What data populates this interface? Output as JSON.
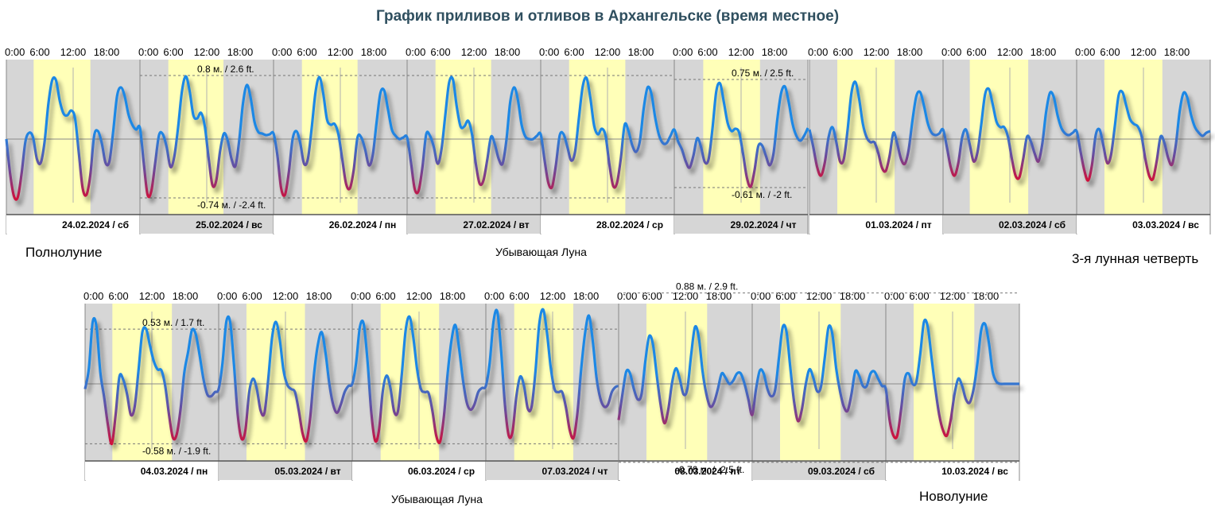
{
  "title": "График приливов и отливов в Архангельске (время местное)",
  "colors": {
    "high": "#1e88e5",
    "low": "#d0103a",
    "day": "#ffffb8",
    "night": "#d6d6d6",
    "axis": "#888888"
  },
  "chart_data": {
    "type": "line",
    "title": "График приливов и отливов в Архангельске (время местное)",
    "x_tick_labels": [
      "0:00",
      "6:00",
      "12:00",
      "18:00"
    ],
    "rows": [
      {
        "days": [
          {
            "label": "24.02.2024 / сб",
            "sunrise": 4.9,
            "sunset": 15.1,
            "y": [
              0.0,
              -0.44,
              -0.72,
              -0.73,
              -0.43,
              -0.03,
              0.08,
              0.02,
              -0.25,
              -0.3,
              -0.04,
              0.44,
              0.74,
              0.74,
              0.48,
              0.32,
              0.3,
              0.36,
              0.26,
              -0.18,
              -0.62,
              -0.7,
              -0.45,
              0.04,
              0.1,
              -0.05,
              -0.3,
              -0.28,
              0.1,
              0.54,
              0.65,
              0.54,
              0.31,
              0.18,
              0.12,
              0.14
            ]
          },
          {
            "label": "25.02.2024 / вс",
            "sunrise": 5.1,
            "sunset": 15.0,
            "y": [
              0.15,
              -0.3,
              -0.7,
              -0.65,
              -0.3,
              0.05,
              0.06,
              -0.1,
              -0.35,
              -0.22,
              0.15,
              0.6,
              0.79,
              0.61,
              0.3,
              0.26,
              0.33,
              0.16,
              -0.24,
              -0.58,
              -0.52,
              -0.15,
              0.07,
              -0.02,
              -0.25,
              -0.34,
              -0.02,
              0.45,
              0.68,
              0.52,
              0.22,
              0.09,
              0.07,
              0.05,
              0.06,
              0.07
            ]
          },
          {
            "label": "26.02.2024 / пн",
            "sunrise": 5.1,
            "sunset": 15.1,
            "y": [
              0.08,
              -0.2,
              -0.62,
              -0.7,
              -0.42,
              0.0,
              0.1,
              -0.05,
              -0.31,
              -0.25,
              0.14,
              0.59,
              0.78,
              0.58,
              0.25,
              0.18,
              0.19,
              0.06,
              -0.25,
              -0.56,
              -0.62,
              -0.39,
              0.02,
              0.02,
              -0.13,
              -0.33,
              -0.2,
              0.21,
              0.58,
              0.61,
              0.37,
              0.12,
              0.04,
              0.0,
              0.02,
              0.02
            ]
          },
          {
            "label": "27.02.2024 / вт",
            "sunrise": 5.1,
            "sunset": 15.1,
            "y": [
              0.04,
              -0.29,
              -0.63,
              -0.65,
              -0.36,
              0.06,
              0.04,
              -0.1,
              -0.31,
              -0.13,
              0.3,
              0.71,
              0.75,
              0.41,
              0.16,
              0.16,
              0.23,
              0.06,
              -0.31,
              -0.56,
              -0.52,
              -0.26,
              0.03,
              -0.07,
              -0.25,
              -0.31,
              -0.02,
              0.46,
              0.65,
              0.5,
              0.18,
              0.03,
              0.0,
              0.0,
              0.04,
              0.06
            ]
          },
          {
            "label": "28.02.2024 / ср",
            "sunrise": 5.1,
            "sunset": 15.2,
            "y": [
              -0.05,
              -0.26,
              -0.55,
              -0.6,
              -0.32,
              0.05,
              0.06,
              -0.1,
              -0.27,
              -0.16,
              0.26,
              0.66,
              0.77,
              0.52,
              0.17,
              0.06,
              0.13,
              0.04,
              -0.32,
              -0.59,
              -0.55,
              -0.24,
              0.18,
              0.1,
              -0.08,
              -0.16,
              -0.02,
              0.39,
              0.65,
              0.57,
              0.27,
              0.05,
              -0.05,
              -0.05,
              0.04,
              0.12
            ]
          },
          {
            "label": "29.02.2024 / чт",
            "sunrise": 5.2,
            "sunset": 15.4,
            "y": [
              -0.05,
              -0.03,
              -0.13,
              -0.28,
              -0.36,
              -0.21,
              0.01,
              -0.1,
              -0.29,
              -0.25,
              0.13,
              0.6,
              0.7,
              0.46,
              0.2,
              0.1,
              0.13,
              0.08,
              -0.18,
              -0.48,
              -0.6,
              -0.4,
              -0.09,
              -0.08,
              -0.21,
              -0.33,
              -0.18,
              0.25,
              0.58,
              0.66,
              0.46,
              0.19,
              0.04,
              -0.02,
              0.04,
              0.14
            ]
          }
        ]
      },
      {
        "days": [
          {
            "label": "01.03.2024 / пт",
            "sunrise": 5.0,
            "sunset": 15.3,
            "y": [
              0.12,
              -0.1,
              -0.35,
              -0.46,
              -0.3,
              0.02,
              0.15,
              -0.03,
              -0.28,
              -0.25,
              0.12,
              0.58,
              0.72,
              0.51,
              0.19,
              0.02,
              -0.04,
              -0.04,
              -0.17,
              -0.36,
              -0.4,
              -0.21,
              0.08,
              -0.06,
              -0.25,
              -0.31,
              -0.13,
              0.24,
              0.54,
              0.59,
              0.42,
              0.2,
              0.08,
              0.05,
              0.07,
              0.12
            ]
          },
          {
            "label": "02.03.2024 / сб",
            "sunrise": 4.8,
            "sunset": 15.3,
            "y": [
              0.12,
              -0.1,
              -0.35,
              -0.46,
              -0.3,
              0.02,
              0.12,
              -0.07,
              -0.28,
              -0.17,
              0.18,
              0.56,
              0.63,
              0.44,
              0.22,
              0.15,
              0.15,
              0.03,
              -0.24,
              -0.46,
              -0.48,
              -0.25,
              0.03,
              -0.03,
              -0.18,
              -0.28,
              -0.06,
              0.34,
              0.58,
              0.53,
              0.3,
              0.14,
              0.07,
              0.05,
              0.08,
              0.1
            ]
          },
          {
            "label": "03.03.2024 / вс",
            "sunrise": 5.0,
            "sunset": 15.4,
            "y": [
              0.1,
              -0.15,
              -0.39,
              -0.52,
              -0.33,
              0.05,
              0.12,
              -0.08,
              -0.3,
              -0.2,
              0.16,
              0.55,
              0.59,
              0.42,
              0.25,
              0.19,
              0.16,
              0.04,
              -0.25,
              -0.46,
              -0.5,
              -0.27,
              0.03,
              -0.05,
              -0.24,
              -0.32,
              -0.07,
              0.35,
              0.58,
              0.52,
              0.3,
              0.15,
              0.08,
              0.04,
              0.08,
              0.1
            ]
          }
        ]
      },
      {
        "days": [
          {
            "label": "04.03.2024 / пн",
            "sunrise": 4.9,
            "sunset": 15.6,
            "y": [
              -0.05,
              0.15,
              0.6,
              0.55,
              0.11,
              -0.13,
              -0.4,
              -0.58,
              -0.3,
              0.07,
              0.04,
              -0.1,
              -0.3,
              -0.22,
              0.13,
              0.5,
              0.53,
              0.37,
              0.22,
              0.14,
              0.13,
              -0.02,
              -0.3,
              -0.52,
              -0.49,
              -0.25,
              0.11,
              0.31,
              0.52,
              0.48,
              0.28,
              0.05,
              -0.1,
              -0.12,
              -0.08,
              -0.05
            ]
          },
          {
            "label": "05.03.2024 / вт",
            "sunrise": 5.0,
            "sunset": 15.5,
            "y": [
              -0.07,
              0.2,
              0.6,
              0.6,
              0.19,
              -0.3,
              -0.53,
              -0.45,
              -0.08,
              0.05,
              -0.05,
              -0.26,
              -0.28,
              0.05,
              0.45,
              0.6,
              0.43,
              0.13,
              -0.01,
              -0.05,
              -0.08,
              -0.26,
              -0.48,
              -0.55,
              -0.32,
              0.1,
              0.38,
              0.5,
              0.3,
              0.0,
              -0.2,
              -0.28,
              -0.2,
              -0.08,
              -0.02,
              0.0
            ]
          },
          {
            "label": "06.03.2024 / ср",
            "sunrise": 5.1,
            "sunset": 15.6,
            "y": [
              0.0,
              0.2,
              0.55,
              0.58,
              0.22,
              -0.28,
              -0.55,
              -0.45,
              -0.07,
              0.08,
              -0.04,
              -0.27,
              -0.26,
              0.1,
              0.52,
              0.65,
              0.45,
              0.14,
              -0.05,
              -0.08,
              -0.09,
              -0.26,
              -0.5,
              -0.56,
              -0.32,
              0.1,
              0.42,
              0.57,
              0.34,
              0.04,
              -0.18,
              -0.25,
              -0.2,
              -0.08,
              -0.04,
              -0.02
            ]
          },
          {
            "label": "07.03.2024 / чт",
            "sunrise": 5.1,
            "sunset": 15.7,
            "y": [
              0.0,
              0.2,
              0.6,
              0.7,
              0.32,
              -0.2,
              -0.5,
              -0.46,
              -0.12,
              0.07,
              -0.02,
              -0.24,
              -0.22,
              0.12,
              0.58,
              0.72,
              0.5,
              0.16,
              -0.05,
              -0.08,
              -0.08,
              -0.23,
              -0.45,
              -0.52,
              -0.28,
              0.15,
              0.49,
              0.66,
              0.42,
              0.06,
              -0.14,
              -0.22,
              -0.2,
              -0.08,
              -0.03,
              -0.02
            ]
          }
        ]
      },
      {
        "days": [
          {
            "label": "08.03.2024 / пт",
            "sunrise": 5.0,
            "sunset": 15.9,
            "y": [
              -0.35,
              -0.1,
              0.12,
              0.1,
              -0.05,
              -0.15,
              -0.1,
              0.22,
              0.46,
              0.38,
              0.08,
              -0.2,
              -0.38,
              -0.25,
              0.01,
              0.15,
              0.05,
              -0.1,
              -0.05,
              0.28,
              0.55,
              0.45,
              0.12,
              -0.1,
              -0.22,
              -0.18,
              -0.05,
              0.1,
              0.06,
              0.0,
              0.03,
              0.1,
              0.1,
              0.0,
              -0.15,
              -0.3
            ]
          },
          {
            "label": "09.03.2024 / сб",
            "sunrise": 5.0,
            "sunset": 15.9,
            "y": [
              -0.3,
              -0.05,
              0.13,
              0.1,
              -0.05,
              -0.12,
              -0.06,
              0.25,
              0.55,
              0.5,
              0.15,
              -0.18,
              -0.36,
              -0.25,
              -0.01,
              0.14,
              0.06,
              -0.07,
              -0.03,
              0.25,
              0.55,
              0.48,
              0.15,
              -0.07,
              -0.22,
              -0.26,
              -0.1,
              0.12,
              0.08,
              -0.02,
              -0.02,
              0.1,
              0.12,
              0.05,
              -0.02,
              -0.05
            ]
          },
          {
            "label": "10.03.2024 / вс",
            "sunrise": 5.0,
            "sunset": 15.9,
            "y": [
              -0.05,
              -0.35,
              -0.5,
              -0.5,
              -0.25,
              0.05,
              0.1,
              0.0,
              0.02,
              0.28,
              0.6,
              0.55,
              0.25,
              -0.05,
              -0.3,
              -0.45,
              -0.5,
              -0.35,
              -0.1,
              0.05,
              -0.02,
              -0.15,
              -0.18,
              -0.05,
              0.2,
              0.52,
              0.58,
              0.4,
              0.12,
              0.02,
              0.0,
              0.0,
              0.0,
              0.0,
              0.0,
              0.0
            ]
          }
        ]
      }
    ],
    "annotations": [
      {
        "row": 0,
        "text": "0.8 м. / 2.6 ft.",
        "level": 0.8,
        "day_from": 1,
        "day_to": 4
      },
      {
        "row": 0,
        "text": "-0.74 м. / -2.4 ft.",
        "level": -0.74,
        "day_from": 1,
        "day_to": 4
      },
      {
        "row": 0,
        "text": "0.75 м. / 2.5 ft.",
        "level": 0.75,
        "day_from": 5,
        "day_to": 5
      },
      {
        "row": 0,
        "text": "-0.61 м. / -2 ft.",
        "level": -0.61,
        "day_from": 5,
        "day_to": 5
      },
      {
        "row": 2,
        "text": "0.53 м. / 1.7 ft.",
        "level": 0.53,
        "day_from": 0,
        "day_to": 3
      },
      {
        "row": 2,
        "text": "-0.58 м. / -1.9 ft.",
        "level": -0.58,
        "day_from": 0,
        "day_to": 3
      },
      {
        "row": 3,
        "text": "0.88 м. / 2.9 ft.",
        "level": 0.88,
        "day_from": 0,
        "day_to": 2
      },
      {
        "row": 3,
        "text": "-0.76 м. / -2.5 ft.",
        "level": -0.76,
        "day_from": 0,
        "day_to": 2
      }
    ],
    "moon_phases": [
      {
        "text": "Полнолуние"
      },
      {
        "text": "Убывающая Луна"
      },
      {
        "text": "3-я лунная четверть"
      },
      {
        "text": "Убывающая Луна"
      },
      {
        "text": "Новолуние"
      }
    ]
  }
}
